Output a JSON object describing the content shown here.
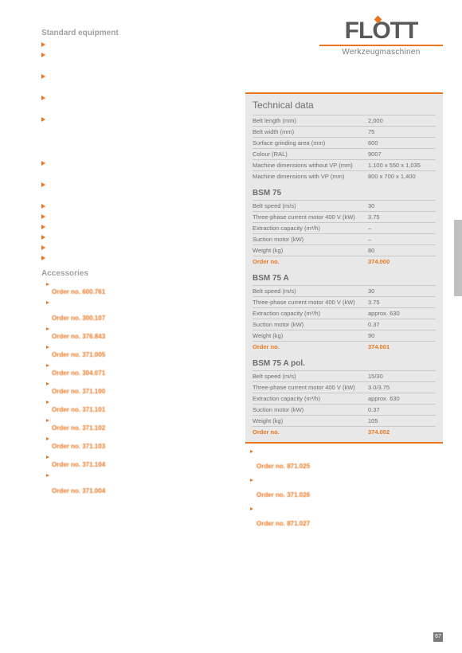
{
  "logo": {
    "brand": "FLOTT",
    "sub": "Werkzeugmaschinen"
  },
  "standard_equipment_title": "Standard equipment",
  "standard_equipment": [
    "",
    "",
    "",
    "",
    "",
    "",
    "",
    "",
    "",
    "",
    "",
    "",
    ""
  ],
  "accessories_title": "Accessories",
  "accessories_left": [
    {
      "text": "",
      "order": "Order no. 600.761"
    },
    {
      "text": "",
      "order": "Order no. 300.107"
    },
    {
      "text": "",
      "order": "Order no. 376.843"
    },
    {
      "text": "",
      "order": "Order no. 371.005"
    },
    {
      "text": "",
      "order": "Order no. 304.071"
    },
    {
      "text": "",
      "order": "Order no. 371.100"
    },
    {
      "text": "",
      "order": "Order no. 371.101"
    },
    {
      "text": "",
      "order": "Order no. 371.102"
    },
    {
      "text": "",
      "order": "Order no. 371.103"
    },
    {
      "text": "",
      "order": "Order no. 371.104"
    },
    {
      "text": "",
      "order": "Order no. 371.004"
    }
  ],
  "accessories_right": [
    {
      "text": "",
      "order": "Order no. 871.025"
    },
    {
      "text": "",
      "order": "Order no. 371.026"
    },
    {
      "text": "",
      "order": "Order no. 871.027"
    }
  ],
  "tech": {
    "title": "Technical data",
    "general": [
      {
        "lbl": "Belt length (mm)",
        "val": "2,000"
      },
      {
        "lbl": "Belt width (mm)",
        "val": "75"
      },
      {
        "lbl": "Surface grinding area (mm)",
        "val": "600"
      },
      {
        "lbl": "Colour (RAL)",
        "val": "9007"
      },
      {
        "lbl": "Machine dimensions without VP (mm)",
        "val": "1,100 x 550 x 1,035"
      },
      {
        "lbl": "Machine dimensions with VP (mm)",
        "val": "800 x 700 x 1,400"
      }
    ],
    "groups": [
      {
        "name": "BSM 75",
        "rows": [
          {
            "lbl": "Belt speed (m/s)",
            "val": "30"
          },
          {
            "lbl": "Three-phase current motor 400 V (kW)",
            "val": "3.75"
          },
          {
            "lbl": "Extraction capacity (m³/h)",
            "val": "–"
          },
          {
            "lbl": "Suction motor (kW)",
            "val": "–"
          },
          {
            "lbl": "Weight (kg)",
            "val": "80"
          }
        ],
        "order": {
          "lbl": "Order no.",
          "val": "374.000"
        }
      },
      {
        "name": "BSM 75 A",
        "rows": [
          {
            "lbl": "Belt speed (m/s)",
            "val": "30"
          },
          {
            "lbl": "Three-phase current motor 400 V (kW)",
            "val": "3.75"
          },
          {
            "lbl": "Extraction capacity (m³/h)",
            "val": "approx. 630"
          },
          {
            "lbl": "Suction motor (kW)",
            "val": "0.37"
          },
          {
            "lbl": "Weight (kg)",
            "val": "90"
          }
        ],
        "order": {
          "lbl": "Order no.",
          "val": "374.001"
        }
      },
      {
        "name": "BSM 75 A pol.",
        "rows": [
          {
            "lbl": "Belt speed (m/s)",
            "val": "15/30"
          },
          {
            "lbl": "Three-phase current motor 400 V (kW)",
            "val": "3.0/3.75"
          },
          {
            "lbl": "Extraction capacity (m³/h)",
            "val": "approx. 630"
          },
          {
            "lbl": "Suction motor (kW)",
            "val": "0.37"
          },
          {
            "lbl": "Weight (kg)",
            "val": "105"
          }
        ],
        "order": {
          "lbl": "Order no.",
          "val": "374.002"
        }
      }
    ]
  },
  "page": "67",
  "colors": {
    "accent": "#e87722",
    "panel_bg": "#e8e8e8",
    "text": "#6d6d6d",
    "heading_grey": "#a0a0a0"
  }
}
